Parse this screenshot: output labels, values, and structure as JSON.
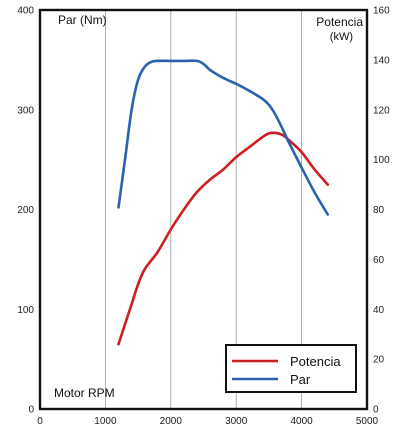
{
  "chart_data": {
    "type": "line",
    "x_axis": {
      "label": "Motor RPM",
      "range": [
        0,
        5000
      ],
      "ticks": [
        0,
        1000,
        2000,
        3000,
        4000,
        5000
      ]
    },
    "y_left": {
      "label": "Par (Nm)",
      "range": [
        0,
        400
      ],
      "ticks": [
        0,
        100,
        200,
        300,
        400
      ]
    },
    "y_right": {
      "label": "Potencia",
      "unit": "(kW)",
      "range": [
        0,
        160
      ],
      "ticks": [
        0,
        20,
        40,
        60,
        80,
        100,
        120,
        140,
        160
      ]
    },
    "grid": "vertical",
    "legend_position": "bottom-right",
    "series": [
      {
        "name": "Potencia",
        "axis": "right",
        "color": "#cc1f1f",
        "points": [
          [
            1200,
            26
          ],
          [
            1300,
            34
          ],
          [
            1400,
            42
          ],
          [
            1500,
            50
          ],
          [
            1600,
            56
          ],
          [
            1800,
            63
          ],
          [
            2000,
            72
          ],
          [
            2200,
            80
          ],
          [
            2400,
            87
          ],
          [
            2600,
            92
          ],
          [
            2800,
            96
          ],
          [
            3000,
            101
          ],
          [
            3200,
            105
          ],
          [
            3400,
            109
          ],
          [
            3500,
            110.5
          ],
          [
            3600,
            110.7
          ],
          [
            3700,
            110
          ],
          [
            3800,
            108
          ],
          [
            4000,
            103
          ],
          [
            4200,
            96
          ],
          [
            4400,
            90
          ]
        ]
      },
      {
        "name": "Par",
        "axis": "left",
        "color": "#2a62ad",
        "points": [
          [
            1200,
            202
          ],
          [
            1300,
            250
          ],
          [
            1400,
            300
          ],
          [
            1500,
            330
          ],
          [
            1600,
            343
          ],
          [
            1700,
            348
          ],
          [
            1800,
            349
          ],
          [
            2000,
            349
          ],
          [
            2200,
            349
          ],
          [
            2400,
            349
          ],
          [
            2500,
            346
          ],
          [
            2600,
            340
          ],
          [
            2800,
            332
          ],
          [
            3000,
            326
          ],
          [
            3200,
            319
          ],
          [
            3400,
            311
          ],
          [
            3500,
            305
          ],
          [
            3600,
            295
          ],
          [
            3700,
            282
          ],
          [
            3800,
            268
          ],
          [
            4000,
            242
          ],
          [
            4200,
            217
          ],
          [
            4400,
            195
          ]
        ]
      }
    ]
  }
}
